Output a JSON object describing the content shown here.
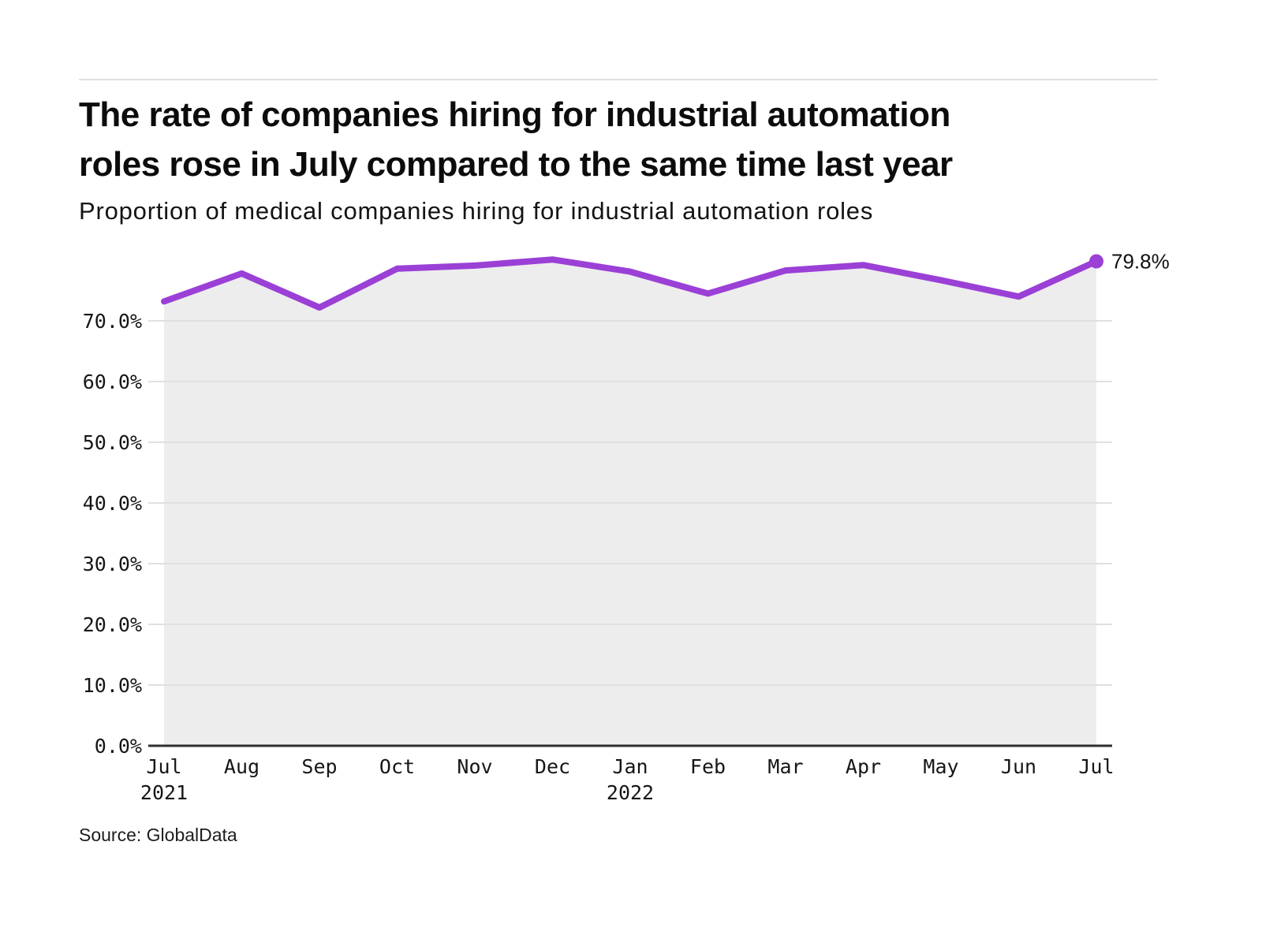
{
  "header": {
    "title_lines": [
      "The rate of companies hiring for industrial automation",
      "roles rose in July compared to the same time last year"
    ],
    "subtitle": "Proportion of medical companies hiring for industrial automation roles"
  },
  "footer": {
    "source": "Source: GlobalData"
  },
  "chart_data": {
    "type": "line",
    "title": "The rate of companies hiring for industrial automation roles rose in July compared to the same time last year",
    "subtitle": "Proportion of medical companies hiring for industrial automation roles",
    "x_labels": [
      "Jul",
      "Aug",
      "Sep",
      "Oct",
      "Nov",
      "Dec",
      "Jan",
      "Feb",
      "Mar",
      "Apr",
      "May",
      "Jun",
      "Jul"
    ],
    "x_sublabels": [
      {
        "index": 0,
        "label": "2021"
      },
      {
        "index": 6,
        "label": "2022"
      }
    ],
    "values": [
      73.2,
      77.8,
      72.2,
      78.6,
      79.1,
      80.1,
      78.1,
      74.5,
      78.3,
      79.2,
      76.7,
      74.0,
      79.8
    ],
    "unit": "%",
    "y_ticks": [
      0,
      10,
      20,
      30,
      40,
      50,
      60,
      70
    ],
    "y_tick_labels": [
      "0.0%",
      "10.0%",
      "20.0%",
      "30.0%",
      "40.0%",
      "50.0%",
      "60.0%",
      "70.0%"
    ],
    "ylim": [
      0,
      82.5
    ],
    "grid": "horizontal",
    "legend": "none",
    "area_fill": true,
    "last_point_label": "79.8%",
    "colors": {
      "line": "#9B40D6",
      "area": "#EDEDED",
      "grid": "#E0E0E0",
      "axis": "#2E2E2E",
      "text": "#161616"
    }
  }
}
